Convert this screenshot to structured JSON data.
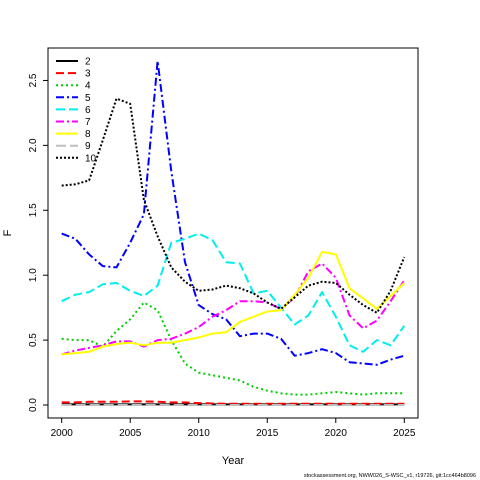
{
  "chart_data": {
    "type": "line",
    "title": "",
    "xlabel": "Year",
    "ylabel": "F",
    "xlim": [
      1999,
      2026
    ],
    "ylim": [
      -0.1,
      2.75
    ],
    "xticks": [
      "2000",
      "2005",
      "2010",
      "2015",
      "2020",
      "2025"
    ],
    "yticks": [
      "0.0",
      "0.5",
      "1.0",
      "1.5",
      "2.0",
      "2.5"
    ],
    "grid": false,
    "legend_position": "top-left",
    "x": [
      2000,
      2001,
      2002,
      2003,
      2004,
      2005,
      2006,
      2007,
      2008,
      2009,
      2010,
      2011,
      2012,
      2013,
      2014,
      2015,
      2016,
      2017,
      2018,
      2019,
      2020,
      2021,
      2022,
      2023,
      2024,
      2025
    ],
    "series": [
      {
        "name": "2",
        "color": "#000000",
        "dash": "solid",
        "values": [
          0.005,
          0.005,
          0.005,
          0.005,
          0.005,
          0.005,
          0.005,
          0.005,
          0.005,
          0.005,
          0.005,
          0.005,
          0.005,
          0.005,
          0.005,
          0.005,
          0.005,
          0.005,
          0.005,
          0.005,
          0.005,
          0.005,
          0.005,
          0.005,
          0.005,
          0.005
        ]
      },
      {
        "name": "3",
        "color": "#ff0000",
        "dash": "8,4",
        "values": [
          0.02,
          0.02,
          0.025,
          0.025,
          0.025,
          0.028,
          0.028,
          0.025,
          0.02,
          0.02,
          0.015,
          0.012,
          0.01,
          0.01,
          0.01,
          0.01,
          0.01,
          0.01,
          0.01,
          0.01,
          0.01,
          0.01,
          0.01,
          0.01,
          0.01,
          0.01
        ]
      },
      {
        "name": "4",
        "color": "#00cd00",
        "dash": "2,3",
        "values": [
          0.51,
          0.5,
          0.5,
          0.45,
          0.57,
          0.66,
          0.79,
          0.73,
          0.5,
          0.32,
          0.25,
          0.23,
          0.21,
          0.19,
          0.14,
          0.11,
          0.09,
          0.08,
          0.08,
          0.09,
          0.1,
          0.09,
          0.08,
          0.09,
          0.09,
          0.09
        ]
      },
      {
        "name": "5",
        "color": "#0000ff",
        "dash": "8,3,2,3",
        "values": [
          1.32,
          1.28,
          1.16,
          1.07,
          1.06,
          1.25,
          1.47,
          2.65,
          1.8,
          1.1,
          0.77,
          0.7,
          0.66,
          0.53,
          0.55,
          0.55,
          0.51,
          0.38,
          0.4,
          0.43,
          0.4,
          0.33,
          0.32,
          0.31,
          0.35,
          0.38
        ]
      },
      {
        "name": "6",
        "color": "#00eeee",
        "dash": "9,4",
        "values": [
          0.8,
          0.85,
          0.87,
          0.93,
          0.94,
          0.88,
          0.84,
          0.92,
          1.25,
          1.28,
          1.32,
          1.27,
          1.1,
          1.09,
          0.86,
          0.88,
          0.75,
          0.62,
          0.69,
          0.87,
          0.68,
          0.46,
          0.41,
          0.5,
          0.46,
          0.61
        ]
      },
      {
        "name": "7",
        "color": "#ff00ff",
        "dash": "8,3,2,3",
        "values": [
          0.39,
          0.42,
          0.44,
          0.46,
          0.49,
          0.49,
          0.45,
          0.5,
          0.51,
          0.55,
          0.6,
          0.68,
          0.73,
          0.8,
          0.8,
          0.79,
          0.74,
          0.83,
          1.03,
          1.09,
          0.98,
          0.69,
          0.59,
          0.65,
          0.8,
          0.96
        ]
      },
      {
        "name": "8",
        "color": "#ffff00",
        "dash": "solid",
        "values": [
          0.39,
          0.4,
          0.41,
          0.45,
          0.47,
          0.48,
          0.46,
          0.48,
          0.48,
          0.5,
          0.52,
          0.55,
          0.56,
          0.64,
          0.68,
          0.72,
          0.73,
          0.85,
          0.98,
          1.18,
          1.16,
          0.9,
          0.82,
          0.74,
          0.84,
          0.94
        ]
      },
      {
        "name": "9",
        "color": "#bebebe",
        "dash": "10,4",
        "values": [
          0.0,
          0.0,
          0.0,
          0.0,
          0.0,
          0.0,
          0.0,
          0.0,
          0.0,
          0.0,
          0.0,
          0.0,
          0.0,
          0.0,
          0.0,
          0.0,
          0.0,
          0.0,
          0.0,
          0.0,
          0.0,
          0.0,
          0.0,
          0.0,
          0.0,
          0.0
        ]
      },
      {
        "name": "10",
        "color": "#000000",
        "dash": "2,2",
        "values": [
          1.69,
          1.7,
          1.73,
          2.04,
          2.36,
          2.32,
          1.58,
          1.3,
          1.06,
          0.95,
          0.88,
          0.89,
          0.92,
          0.9,
          0.86,
          0.79,
          0.74,
          0.83,
          0.92,
          0.95,
          0.94,
          0.85,
          0.77,
          0.71,
          0.88,
          1.14
        ]
      }
    ]
  },
  "footer_note": "stockassessment.org, NWW026_S-WSC_v1, r19726, git:1cc464b8096"
}
